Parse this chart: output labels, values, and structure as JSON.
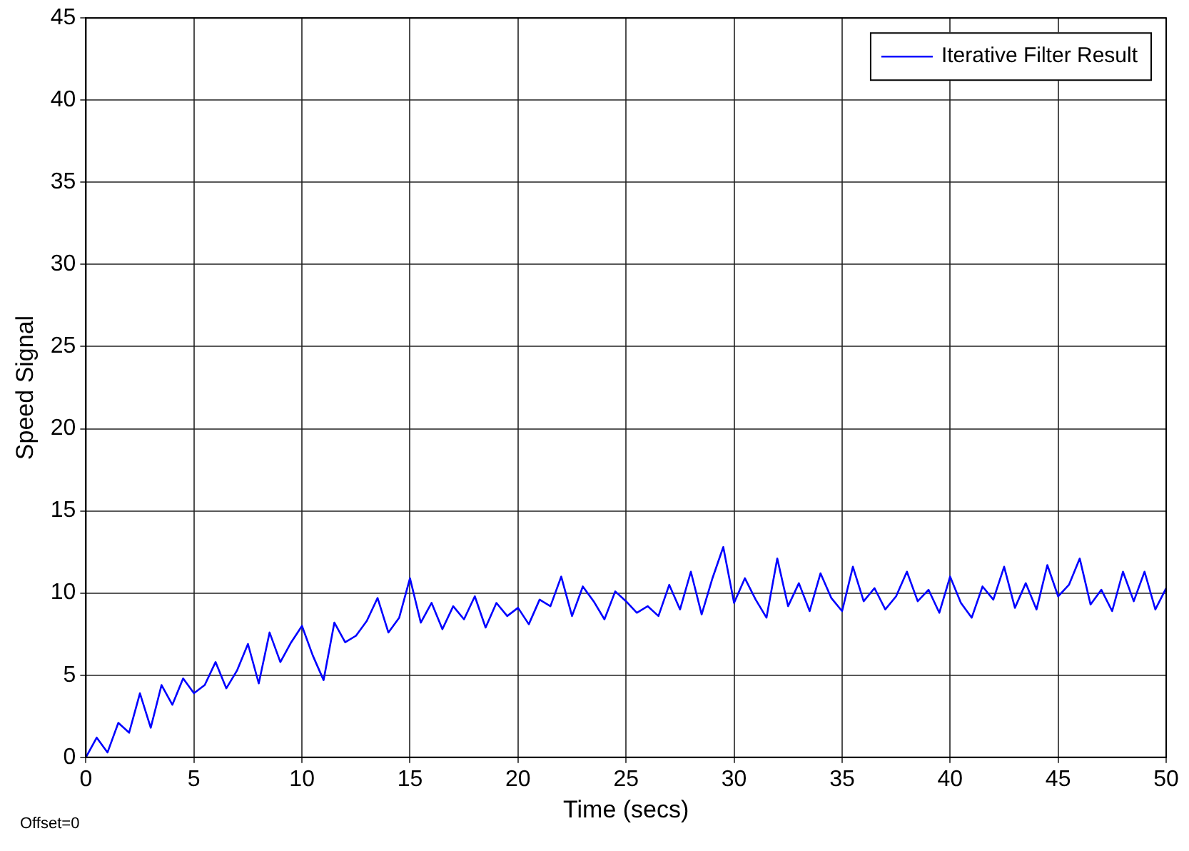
{
  "chart_data": {
    "type": "line",
    "xlabel": "Time (secs)",
    "ylabel": "Speed Signal",
    "annotations": [
      "Offset=0"
    ],
    "x": [
      0,
      0.5,
      1,
      1.5,
      2,
      2.5,
      3,
      3.5,
      4,
      4.5,
      5,
      5.5,
      6,
      6.5,
      7,
      7.5,
      8,
      8.5,
      9,
      9.5,
      10,
      10.5,
      11,
      11.5,
      12,
      12.5,
      13,
      13.5,
      14,
      14.5,
      15,
      15.5,
      16,
      16.5,
      17,
      17.5,
      18,
      18.5,
      19,
      19.5,
      20,
      20.5,
      21,
      21.5,
      22,
      22.5,
      23,
      23.5,
      24,
      24.5,
      25,
      25.5,
      26,
      26.5,
      27,
      27.5,
      28,
      28.5,
      29,
      29.5,
      30,
      30.5,
      31,
      31.5,
      32,
      32.5,
      33,
      33.5,
      34,
      34.5,
      35,
      35.5,
      36,
      36.5,
      37,
      37.5,
      38,
      38.5,
      39,
      39.5,
      40,
      40.5,
      41,
      41.5,
      42,
      42.5,
      43,
      43.5,
      44,
      44.5,
      45,
      45.5,
      46,
      46.5,
      47,
      47.5,
      48,
      48.5,
      49,
      49.5,
      50
    ],
    "series": [
      {
        "name": "Iterative Filter Result",
        "color": "#0000ff",
        "values": [
          0,
          1.2,
          0.3,
          2.1,
          1.5,
          3.9,
          1.8,
          4.4,
          3.2,
          4.8,
          3.9,
          4.4,
          5.8,
          4.2,
          5.3,
          6.9,
          4.5,
          7.6,
          5.8,
          7.0,
          8.0,
          6.2,
          4.7,
          8.2,
          7.0,
          7.4,
          8.3,
          9.7,
          7.6,
          8.5,
          10.9,
          8.2,
          9.4,
          7.8,
          9.2,
          8.4,
          9.8,
          7.9,
          9.4,
          8.6,
          9.1,
          8.1,
          9.6,
          9.2,
          11.0,
          8.6,
          10.4,
          9.5,
          8.4,
          10.1,
          9.5,
          8.8,
          9.2,
          8.6,
          10.5,
          9.0,
          11.3,
          8.7,
          10.9,
          12.8,
          9.4,
          10.9,
          9.6,
          8.5,
          12.1,
          9.2,
          10.6,
          8.9,
          11.2,
          9.7,
          8.9,
          11.6,
          9.5,
          10.3,
          9.0,
          9.8,
          11.3,
          9.5,
          10.2,
          8.8,
          11.0,
          9.4,
          8.5,
          10.4,
          9.6,
          11.6,
          9.1,
          10.6,
          9.0,
          11.7,
          9.8,
          10.5,
          12.1,
          9.3,
          10.2,
          8.9,
          11.3,
          9.5,
          11.3,
          9.0,
          10.3
        ]
      }
    ],
    "xlim": [
      0,
      50
    ],
    "xticks": [
      0,
      5,
      10,
      15,
      20,
      25,
      30,
      35,
      40,
      45,
      50
    ],
    "ylim": [
      0,
      45
    ],
    "yticks": [
      0,
      5,
      10,
      15,
      20,
      25,
      30,
      35,
      40,
      45
    ],
    "grid": true,
    "legend": "top right",
    "marker": "none",
    "line_style": "solid"
  }
}
